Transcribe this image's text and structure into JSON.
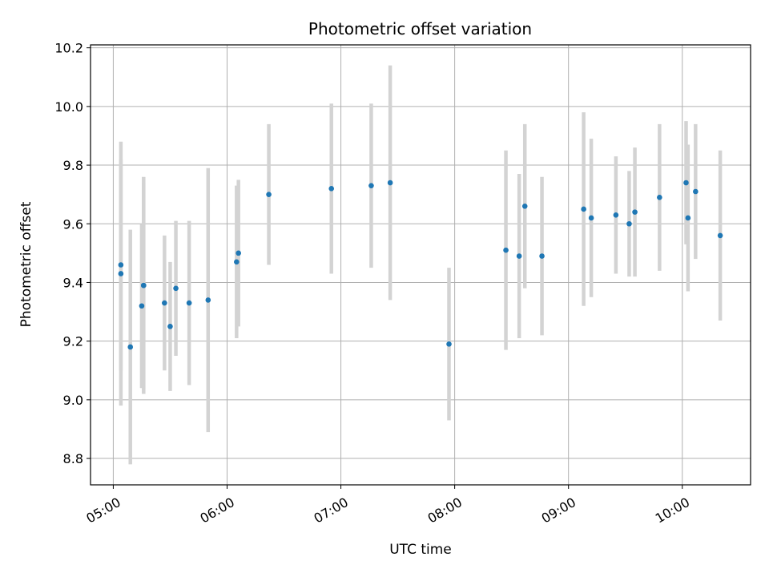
{
  "chart_data": {
    "type": "scatter",
    "title": "Photometric offset variation",
    "xlabel": "UTC time",
    "ylabel": "Photometric offset",
    "x_unit": "UTC",
    "xlim": [
      "04:48",
      "10:36"
    ],
    "ylim": [
      8.71,
      10.21
    ],
    "x_ticks": [
      "05:00",
      "06:00",
      "07:00",
      "08:00",
      "09:00",
      "10:00"
    ],
    "y_ticks": [
      "8.8",
      "9.0",
      "9.2",
      "9.4",
      "9.6",
      "9.8",
      "10.0",
      "10.2"
    ],
    "grid": true,
    "legend": "none",
    "marker_color": "#1f77b4",
    "errorbar_color": "#d3d3d3",
    "points": [
      {
        "t": "05:04",
        "y": 9.46,
        "err": 0.36
      },
      {
        "t": "05:04",
        "y": 9.43,
        "err": 0.45
      },
      {
        "t": "05:09",
        "y": 9.18,
        "err": 0.4
      },
      {
        "t": "05:15",
        "y": 9.32,
        "err": 0.28
      },
      {
        "t": "05:16",
        "y": 9.39,
        "err": 0.37
      },
      {
        "t": "05:16",
        "y": 9.39,
        "err": 0.35
      },
      {
        "t": "05:27",
        "y": 9.33,
        "err": 0.23
      },
      {
        "t": "05:30",
        "y": 9.25,
        "err": 0.22
      },
      {
        "t": "05:33",
        "y": 9.38,
        "err": 0.23
      },
      {
        "t": "05:40",
        "y": 9.33,
        "err": 0.28
      },
      {
        "t": "05:50",
        "y": 9.34,
        "err": 0.45
      },
      {
        "t": "06:05",
        "y": 9.47,
        "err": 0.26
      },
      {
        "t": "06:06",
        "y": 9.5,
        "err": 0.25
      },
      {
        "t": "06:22",
        "y": 9.7,
        "err": 0.24
      },
      {
        "t": "06:55",
        "y": 9.72,
        "err": 0.29
      },
      {
        "t": "07:16",
        "y": 9.73,
        "err": 0.28
      },
      {
        "t": "07:26",
        "y": 9.74,
        "err": 0.4
      },
      {
        "t": "07:57",
        "y": 9.19,
        "err": 0.26
      },
      {
        "t": "08:27",
        "y": 9.51,
        "err": 0.34
      },
      {
        "t": "08:34",
        "y": 9.49,
        "err": 0.28
      },
      {
        "t": "08:37",
        "y": 9.66,
        "err": 0.28
      },
      {
        "t": "08:46",
        "y": 9.49,
        "err": 0.27
      },
      {
        "t": "09:08",
        "y": 9.65,
        "err": 0.33
      },
      {
        "t": "09:12",
        "y": 9.62,
        "err": 0.27
      },
      {
        "t": "09:25",
        "y": 9.63,
        "err": 0.2
      },
      {
        "t": "09:32",
        "y": 9.6,
        "err": 0.18
      },
      {
        "t": "09:35",
        "y": 9.64,
        "err": 0.22
      },
      {
        "t": "09:48",
        "y": 9.69,
        "err": 0.25
      },
      {
        "t": "10:02",
        "y": 9.74,
        "err": 0.21
      },
      {
        "t": "10:03",
        "y": 9.62,
        "err": 0.25
      },
      {
        "t": "10:07",
        "y": 9.71,
        "err": 0.23
      },
      {
        "t": "10:20",
        "y": 9.56,
        "err": 0.29
      }
    ]
  }
}
